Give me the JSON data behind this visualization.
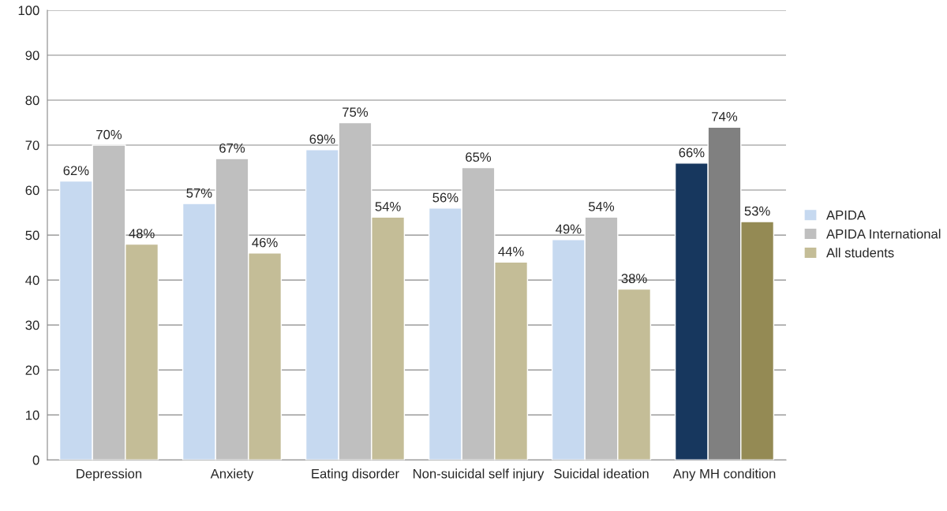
{
  "chart_data": {
    "type": "bar",
    "categories": [
      "Depression",
      "Anxiety",
      "Eating disorder",
      "Non-suicidal self injury",
      "Suicidal ideation",
      "Any MH condition"
    ],
    "series": [
      {
        "name": "APIDA",
        "color": "#c6d9f0",
        "colors": [
          "#c6d9f0",
          "#c6d9f0",
          "#c6d9f0",
          "#c6d9f0",
          "#c6d9f0",
          "#17375e"
        ],
        "values": [
          62,
          57,
          69,
          56,
          49,
          66
        ],
        "value_labels": [
          "62%",
          "57%",
          "69%",
          "56%",
          "49%",
          "66%"
        ]
      },
      {
        "name": "APIDA International",
        "color": "#bfbfbf",
        "colors": [
          "#bfbfbf",
          "#bfbfbf",
          "#bfbfbf",
          "#bfbfbf",
          "#bfbfbf",
          "#808080"
        ],
        "values": [
          70,
          67,
          75,
          65,
          54,
          74
        ],
        "value_labels": [
          "70%",
          "67%",
          "75%",
          "65%",
          "54%",
          "74%"
        ]
      },
      {
        "name": "All students",
        "color": "#c4bd97",
        "colors": [
          "#c4bd97",
          "#c4bd97",
          "#c4bd97",
          "#c4bd97",
          "#c4bd97",
          "#948a54"
        ],
        "values": [
          48,
          46,
          54,
          44,
          38,
          53
        ],
        "value_labels": [
          "48%",
          "46%",
          "54%",
          "44%",
          "38%",
          "53%"
        ]
      }
    ],
    "ylim": [
      0,
      100
    ],
    "yticks": [
      0,
      10,
      20,
      30,
      40,
      50,
      60,
      70,
      80,
      90,
      100
    ],
    "grid": "y",
    "legend": "right"
  }
}
